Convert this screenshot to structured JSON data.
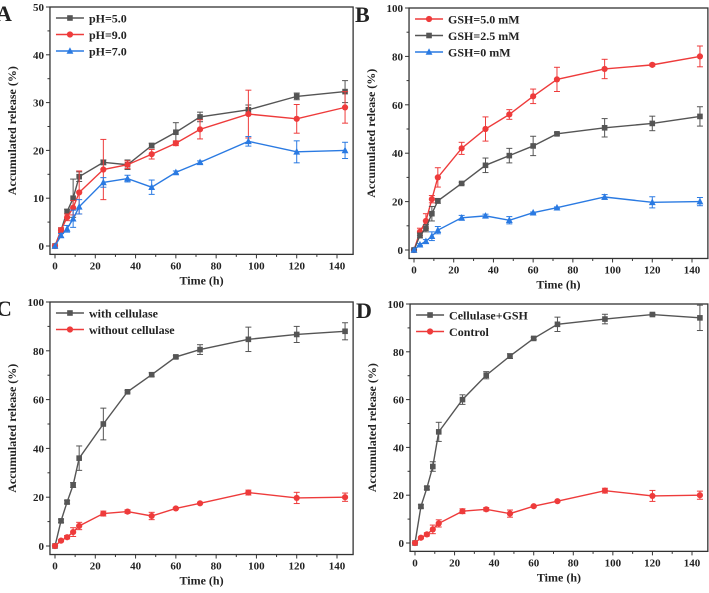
{
  "chart_data": [
    {
      "panel": "A",
      "type": "line",
      "xlabel": "Time (h)",
      "ylabel": "Accumulated release (%)",
      "xlim": [
        0,
        140
      ],
      "ylim": [
        0,
        50
      ],
      "xticks": [
        0,
        20,
        40,
        60,
        80,
        100,
        120,
        140
      ],
      "yticks": [
        0,
        10,
        20,
        30,
        40,
        50
      ],
      "legend_position": "top-left",
      "x": [
        0,
        3,
        6,
        9,
        12,
        24,
        36,
        48,
        60,
        72,
        96,
        120,
        144
      ],
      "series": [
        {
          "name": "pH=5.0",
          "color": "#555555",
          "marker": "square",
          "values": [
            0,
            3.3,
            7.2,
            10,
            14.5,
            17.5,
            17,
            21,
            23.8,
            27,
            28.5,
            31.3,
            32.3
          ],
          "errors": [
            0,
            0.5,
            0.5,
            4,
            1,
            0.5,
            1,
            0.5,
            2,
            1,
            1,
            0.7,
            2.3
          ]
        },
        {
          "name": "pH=9.0",
          "color": "#ee3b3b",
          "marker": "circle",
          "values": [
            0,
            3.3,
            6,
            8,
            11.2,
            16,
            17,
            19.2,
            21.5,
            24.4,
            27.6,
            26.6,
            29
          ],
          "errors": [
            0,
            0.5,
            0.7,
            1.5,
            4.5,
            6.3,
            0.8,
            1,
            0.5,
            2,
            5,
            3,
            3.3
          ]
        },
        {
          "name": "pH=7.0",
          "color": "#2a7ae2",
          "marker": "triangle",
          "values": [
            0,
            2.2,
            3.6,
            5.7,
            8.2,
            13.3,
            14.1,
            12.3,
            15.4,
            17.5,
            21.9,
            19.7,
            20
          ],
          "errors": [
            0,
            0.4,
            0.7,
            1.8,
            1.5,
            1,
            0.7,
            1.5,
            0.3,
            0.3,
            1,
            2.3,
            1.7
          ]
        }
      ]
    },
    {
      "panel": "B",
      "type": "line",
      "xlabel": "Time (h)",
      "ylabel": "Accumulated release (%)",
      "xlim": [
        0,
        140
      ],
      "ylim": [
        0,
        100
      ],
      "xticks": [
        0,
        20,
        40,
        60,
        80,
        100,
        120,
        140
      ],
      "yticks": [
        0,
        20,
        40,
        60,
        80,
        100
      ],
      "legend_position": "top-left",
      "x": [
        0,
        3,
        6,
        9,
        12,
        24,
        36,
        48,
        60,
        72,
        96,
        120,
        144
      ],
      "series": [
        {
          "name": "GSH=5.0 mM",
          "color": "#ee3b3b",
          "marker": "circle",
          "values": [
            0,
            7.5,
            12,
            21,
            30,
            42,
            50,
            56,
            63.5,
            70.5,
            74.8,
            76.5,
            80
          ],
          "errors": [
            0,
            1.5,
            3,
            1.5,
            4,
            2.5,
            5,
            2,
            3,
            5,
            4,
            0.5,
            4.3
          ]
        },
        {
          "name": "GSH=2.5 mM",
          "color": "#555555",
          "marker": "square",
          "values": [
            0,
            6,
            9,
            15,
            20.3,
            27.5,
            35,
            39,
            43,
            48,
            50.5,
            52.3,
            55.2
          ],
          "errors": [
            0,
            1,
            1.5,
            3,
            1,
            0.5,
            3,
            3,
            4,
            0.5,
            3.8,
            3,
            4
          ]
        },
        {
          "name": "GSH=0 mM",
          "color": "#2a7ae2",
          "marker": "triangle",
          "values": [
            0,
            2.2,
            3.6,
            5.7,
            8.2,
            13.3,
            14.1,
            12.3,
            15.4,
            17.5,
            21.9,
            19.7,
            20
          ],
          "errors": [
            0,
            0.4,
            0.7,
            1.8,
            1.5,
            1,
            0.7,
            1.5,
            0.3,
            0.3,
            1,
            2.3,
            1.7
          ]
        }
      ]
    },
    {
      "panel": "C",
      "type": "line",
      "xlabel": "Time (h)",
      "ylabel": "Accumulated release (%)",
      "xlim": [
        0,
        140
      ],
      "ylim": [
        0,
        100
      ],
      "xticks": [
        0,
        20,
        40,
        60,
        80,
        100,
        120,
        140
      ],
      "yticks": [
        0,
        20,
        40,
        60,
        80,
        100
      ],
      "legend_position": "top-left",
      "x": [
        0,
        3,
        6,
        9,
        12,
        24,
        36,
        48,
        60,
        72,
        96,
        120,
        144
      ],
      "series": [
        {
          "name": "with cellulase",
          "color": "#555555",
          "marker": "square",
          "values": [
            0,
            10.3,
            18,
            25,
            36,
            50,
            63.2,
            70.2,
            77.5,
            80.5,
            84.7,
            86.7,
            88
          ],
          "errors": [
            0,
            0.7,
            0.7,
            1,
            5,
            6.5,
            0.5,
            0.8,
            0.5,
            2,
            5,
            3.3,
            3.5
          ]
        },
        {
          "name": "without cellulase",
          "color": "#ee3b3b",
          "marker": "circle",
          "values": [
            0,
            2.2,
            3.6,
            5.7,
            8.2,
            13.3,
            14.1,
            12.3,
            15.4,
            17.5,
            21.9,
            19.7,
            20
          ],
          "errors": [
            0,
            0.4,
            0.7,
            1.8,
            1.5,
            1,
            0.7,
            1.5,
            0.3,
            0.3,
            1,
            2.3,
            1.7
          ]
        }
      ]
    },
    {
      "panel": "D",
      "type": "line",
      "xlabel": "Time (h)",
      "ylabel": "Accumulated release (%)",
      "xlim": [
        0,
        140
      ],
      "ylim": [
        0,
        100
      ],
      "xticks": [
        0,
        20,
        40,
        60,
        80,
        100,
        120,
        140
      ],
      "yticks": [
        0,
        20,
        40,
        60,
        80,
        100
      ],
      "legend_position": "top-left",
      "x": [
        0,
        3,
        6,
        9,
        12,
        24,
        36,
        48,
        60,
        72,
        96,
        120,
        144
      ],
      "series": [
        {
          "name": "Cellulase+GSH",
          "color": "#555555",
          "marker": "square",
          "values": [
            0,
            15.3,
            23,
            32,
            46.5,
            60,
            70.2,
            78.2,
            85.6,
            91.5,
            93.7,
            95.6,
            94.2
          ],
          "errors": [
            0,
            0.7,
            0.7,
            2,
            4,
            2,
            1.5,
            1,
            0.5,
            3,
            2,
            0.5,
            5.3
          ]
        },
        {
          "name": "Control",
          "color": "#ee3b3b",
          "marker": "circle",
          "values": [
            0,
            2.2,
            3.6,
            5.7,
            8.2,
            13.3,
            14.1,
            12.3,
            15.4,
            17.5,
            21.9,
            19.7,
            20
          ],
          "errors": [
            0,
            0.4,
            0.7,
            1.8,
            1.5,
            1,
            0.7,
            1.5,
            0.3,
            0.3,
            1,
            2.3,
            1.7
          ]
        }
      ]
    }
  ]
}
